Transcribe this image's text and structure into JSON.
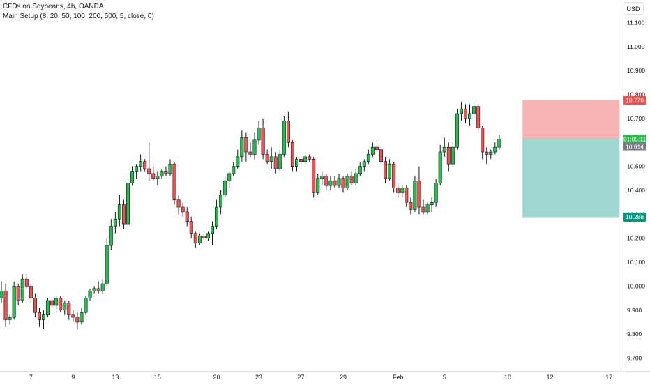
{
  "legend": {
    "title": "CFDs on Soybeans, 4h, OANDA",
    "indicator": "Main Setup (8, 20, 50, 100, 200, 500, 5, close, 0)"
  },
  "currency_button": "USD",
  "colors": {
    "up": "#26a69a",
    "up_fill": "#2bbd4a",
    "down": "#ef5350",
    "stop_zone": "#f7b4b3",
    "target_zone": "#9fd9d2",
    "stop_label": "#ef5350",
    "target_label": "#089981",
    "price_label": "#787b86"
  },
  "price_labels": {
    "stop": "10.776",
    "countdown": "01:05:11",
    "price": "10.614",
    "target": "10.288"
  },
  "chart_data": {
    "type": "candlestick",
    "title": "CFDs on Soybeans, 4h, OANDA",
    "y_axis": {
      "ylim": [
        9.68,
        11.17
      ],
      "ticks": [
        "11.100",
        "11.000",
        "10.900",
        "10.800",
        "10.700",
        "10.600",
        "10.500",
        "10.400",
        "10.300",
        "10.200",
        "10.100",
        "10.000",
        "9.900",
        "9.800",
        "9.700"
      ]
    },
    "x_axis": {
      "ticks": [
        {
          "label": "7",
          "bar": 7
        },
        {
          "label": "9",
          "bar": 17
        },
        {
          "label": "13",
          "bar": 27
        },
        {
          "label": "15",
          "bar": 37
        },
        {
          "label": "20",
          "bar": 51
        },
        {
          "label": "23",
          "bar": 61
        },
        {
          "label": "27",
          "bar": 71
        },
        {
          "label": "29",
          "bar": 81
        },
        {
          "label": "Feb",
          "bar": 94
        },
        {
          "label": "5",
          "bar": 105
        },
        {
          "label": "10",
          "bar": 120
        },
        {
          "label": "12",
          "bar": 130
        },
        {
          "label": "17",
          "bar": 144
        }
      ]
    },
    "candles": [
      [
        9.95,
        10.02,
        9.93,
        9.98
      ],
      [
        9.98,
        10.01,
        9.83,
        9.86
      ],
      [
        9.86,
        9.88,
        9.84,
        9.87
      ],
      [
        9.87,
        10.02,
        9.86,
        10.0
      ],
      [
        10.0,
        10.01,
        9.92,
        9.94
      ],
      [
        9.94,
        10.05,
        9.93,
        10.03
      ],
      [
        10.03,
        10.05,
        9.99,
        10.0
      ],
      [
        10.0,
        10.01,
        9.93,
        9.95
      ],
      [
        9.95,
        9.97,
        9.87,
        9.89
      ],
      [
        9.89,
        9.91,
        9.83,
        9.86
      ],
      [
        9.86,
        9.9,
        9.82,
        9.88
      ],
      [
        9.88,
        9.95,
        9.87,
        9.94
      ],
      [
        9.94,
        9.95,
        9.91,
        9.92
      ],
      [
        9.92,
        9.96,
        9.89,
        9.95
      ],
      [
        9.95,
        9.96,
        9.89,
        9.9
      ],
      [
        9.9,
        9.94,
        9.88,
        9.93
      ],
      [
        9.93,
        9.94,
        9.86,
        9.88
      ],
      [
        9.88,
        9.9,
        9.85,
        9.87
      ],
      [
        9.87,
        9.89,
        9.82,
        9.85
      ],
      [
        9.85,
        9.91,
        9.84,
        9.89
      ],
      [
        9.89,
        9.96,
        9.88,
        9.95
      ],
      [
        9.95,
        9.99,
        9.94,
        9.98
      ],
      [
        9.98,
        10.0,
        9.97,
        9.99
      ],
      [
        9.99,
        10.02,
        9.97,
        9.98
      ],
      [
        9.98,
        10.03,
        9.97,
        10.01
      ],
      [
        10.01,
        10.2,
        10.0,
        10.17
      ],
      [
        10.17,
        10.28,
        10.15,
        10.25
      ],
      [
        10.25,
        10.31,
        10.22,
        10.28
      ],
      [
        10.28,
        10.38,
        10.25,
        10.34
      ],
      [
        10.34,
        10.36,
        10.24,
        10.26
      ],
      [
        10.26,
        10.46,
        10.25,
        10.43
      ],
      [
        10.43,
        10.5,
        10.42,
        10.48
      ],
      [
        10.48,
        10.51,
        10.45,
        10.5
      ],
      [
        10.5,
        10.55,
        10.48,
        10.52
      ],
      [
        10.52,
        10.53,
        10.48,
        10.49
      ],
      [
        10.49,
        10.6,
        10.44,
        10.47
      ],
      [
        10.47,
        10.5,
        10.44,
        10.45
      ],
      [
        10.45,
        10.48,
        10.42,
        10.46
      ],
      [
        10.46,
        10.49,
        10.45,
        10.48
      ],
      [
        10.48,
        10.5,
        10.46,
        10.47
      ],
      [
        10.47,
        10.53,
        10.46,
        10.51
      ],
      [
        10.51,
        10.52,
        10.34,
        10.36
      ],
      [
        10.36,
        10.38,
        10.3,
        10.33
      ],
      [
        10.33,
        10.35,
        10.29,
        10.31
      ],
      [
        10.31,
        10.33,
        10.25,
        10.27
      ],
      [
        10.27,
        10.29,
        10.2,
        10.22
      ],
      [
        10.22,
        10.23,
        10.16,
        10.18
      ],
      [
        10.18,
        10.22,
        10.17,
        10.21
      ],
      [
        10.21,
        10.23,
        10.19,
        10.2
      ],
      [
        10.2,
        10.23,
        10.19,
        10.22
      ],
      [
        10.22,
        10.27,
        10.17,
        10.25
      ],
      [
        10.25,
        10.36,
        10.24,
        10.33
      ],
      [
        10.33,
        10.4,
        10.3,
        10.38
      ],
      [
        10.38,
        10.46,
        10.37,
        10.44
      ],
      [
        10.44,
        10.48,
        10.41,
        10.47
      ],
      [
        10.47,
        10.52,
        10.46,
        10.5
      ],
      [
        10.5,
        10.57,
        10.49,
        10.54
      ],
      [
        10.54,
        10.65,
        10.52,
        10.62
      ],
      [
        10.62,
        10.64,
        10.52,
        10.56
      ],
      [
        10.56,
        10.6,
        10.54,
        10.55
      ],
      [
        10.55,
        10.64,
        10.53,
        10.61
      ],
      [
        10.61,
        10.69,
        10.59,
        10.66
      ],
      [
        10.66,
        10.7,
        10.53,
        10.55
      ],
      [
        10.55,
        10.57,
        10.51,
        10.52
      ],
      [
        10.52,
        10.58,
        10.49,
        10.54
      ],
      [
        10.54,
        10.56,
        10.47,
        10.49
      ],
      [
        10.49,
        10.57,
        10.48,
        10.55
      ],
      [
        10.55,
        10.71,
        10.54,
        10.69
      ],
      [
        10.69,
        10.73,
        10.58,
        10.6
      ],
      [
        10.6,
        10.61,
        10.48,
        10.5
      ],
      [
        10.5,
        10.54,
        10.48,
        10.53
      ],
      [
        10.53,
        10.55,
        10.5,
        10.52
      ],
      [
        10.52,
        10.56,
        10.51,
        10.54
      ],
      [
        10.54,
        10.55,
        10.52,
        10.53
      ],
      [
        10.53,
        10.54,
        10.37,
        10.39
      ],
      [
        10.39,
        10.47,
        10.38,
        10.45
      ],
      [
        10.45,
        10.48,
        10.42,
        10.46
      ],
      [
        10.46,
        10.47,
        10.4,
        10.42
      ],
      [
        10.42,
        10.46,
        10.4,
        10.44
      ],
      [
        10.44,
        10.46,
        10.41,
        10.42
      ],
      [
        10.42,
        10.47,
        10.41,
        10.45
      ],
      [
        10.45,
        10.46,
        10.39,
        10.41
      ],
      [
        10.41,
        10.47,
        10.4,
        10.46
      ],
      [
        10.46,
        10.48,
        10.42,
        10.43
      ],
      [
        10.43,
        10.49,
        10.42,
        10.47
      ],
      [
        10.47,
        10.52,
        10.46,
        10.5
      ],
      [
        10.5,
        10.53,
        10.48,
        10.52
      ],
      [
        10.52,
        10.57,
        10.51,
        10.55
      ],
      [
        10.55,
        10.6,
        10.54,
        10.58
      ],
      [
        10.58,
        10.61,
        10.56,
        10.57
      ],
      [
        10.57,
        10.58,
        10.51,
        10.52
      ],
      [
        10.52,
        10.54,
        10.43,
        10.45
      ],
      [
        10.45,
        10.53,
        10.44,
        10.51
      ],
      [
        10.51,
        10.52,
        10.39,
        10.41
      ],
      [
        10.41,
        10.43,
        10.37,
        10.39
      ],
      [
        10.39,
        10.42,
        10.37,
        10.41
      ],
      [
        10.41,
        10.42,
        10.33,
        10.35
      ],
      [
        10.35,
        10.37,
        10.3,
        10.32
      ],
      [
        10.32,
        10.46,
        10.31,
        10.44
      ],
      [
        10.44,
        10.5,
        10.3,
        10.33
      ],
      [
        10.33,
        10.36,
        10.3,
        10.31
      ],
      [
        10.31,
        10.35,
        10.3,
        10.34
      ],
      [
        10.34,
        10.37,
        10.31,
        10.35
      ],
      [
        10.35,
        10.45,
        10.33,
        10.43
      ],
      [
        10.43,
        10.59,
        10.42,
        10.56
      ],
      [
        10.56,
        10.62,
        10.54,
        10.58
      ],
      [
        10.58,
        10.6,
        10.48,
        10.51
      ],
      [
        10.51,
        10.6,
        10.5,
        10.58
      ],
      [
        10.58,
        10.74,
        10.57,
        10.72
      ],
      [
        10.72,
        10.77,
        10.69,
        10.74
      ],
      [
        10.74,
        10.76,
        10.68,
        10.7
      ],
      [
        10.7,
        10.76,
        10.67,
        10.72
      ],
      [
        10.72,
        10.77,
        10.7,
        10.75
      ],
      [
        10.75,
        10.76,
        10.64,
        10.66
      ],
      [
        10.66,
        10.67,
        10.53,
        10.56
      ],
      [
        10.56,
        10.58,
        10.51,
        10.55
      ],
      [
        10.55,
        10.57,
        10.53,
        10.56
      ],
      [
        10.56,
        10.6,
        10.55,
        10.58
      ],
      [
        10.58,
        10.63,
        10.57,
        10.614
      ]
    ],
    "position": {
      "entry": 10.614,
      "stop": 10.776,
      "target": 10.288,
      "start_bar": 124,
      "end_bar": 146
    }
  }
}
